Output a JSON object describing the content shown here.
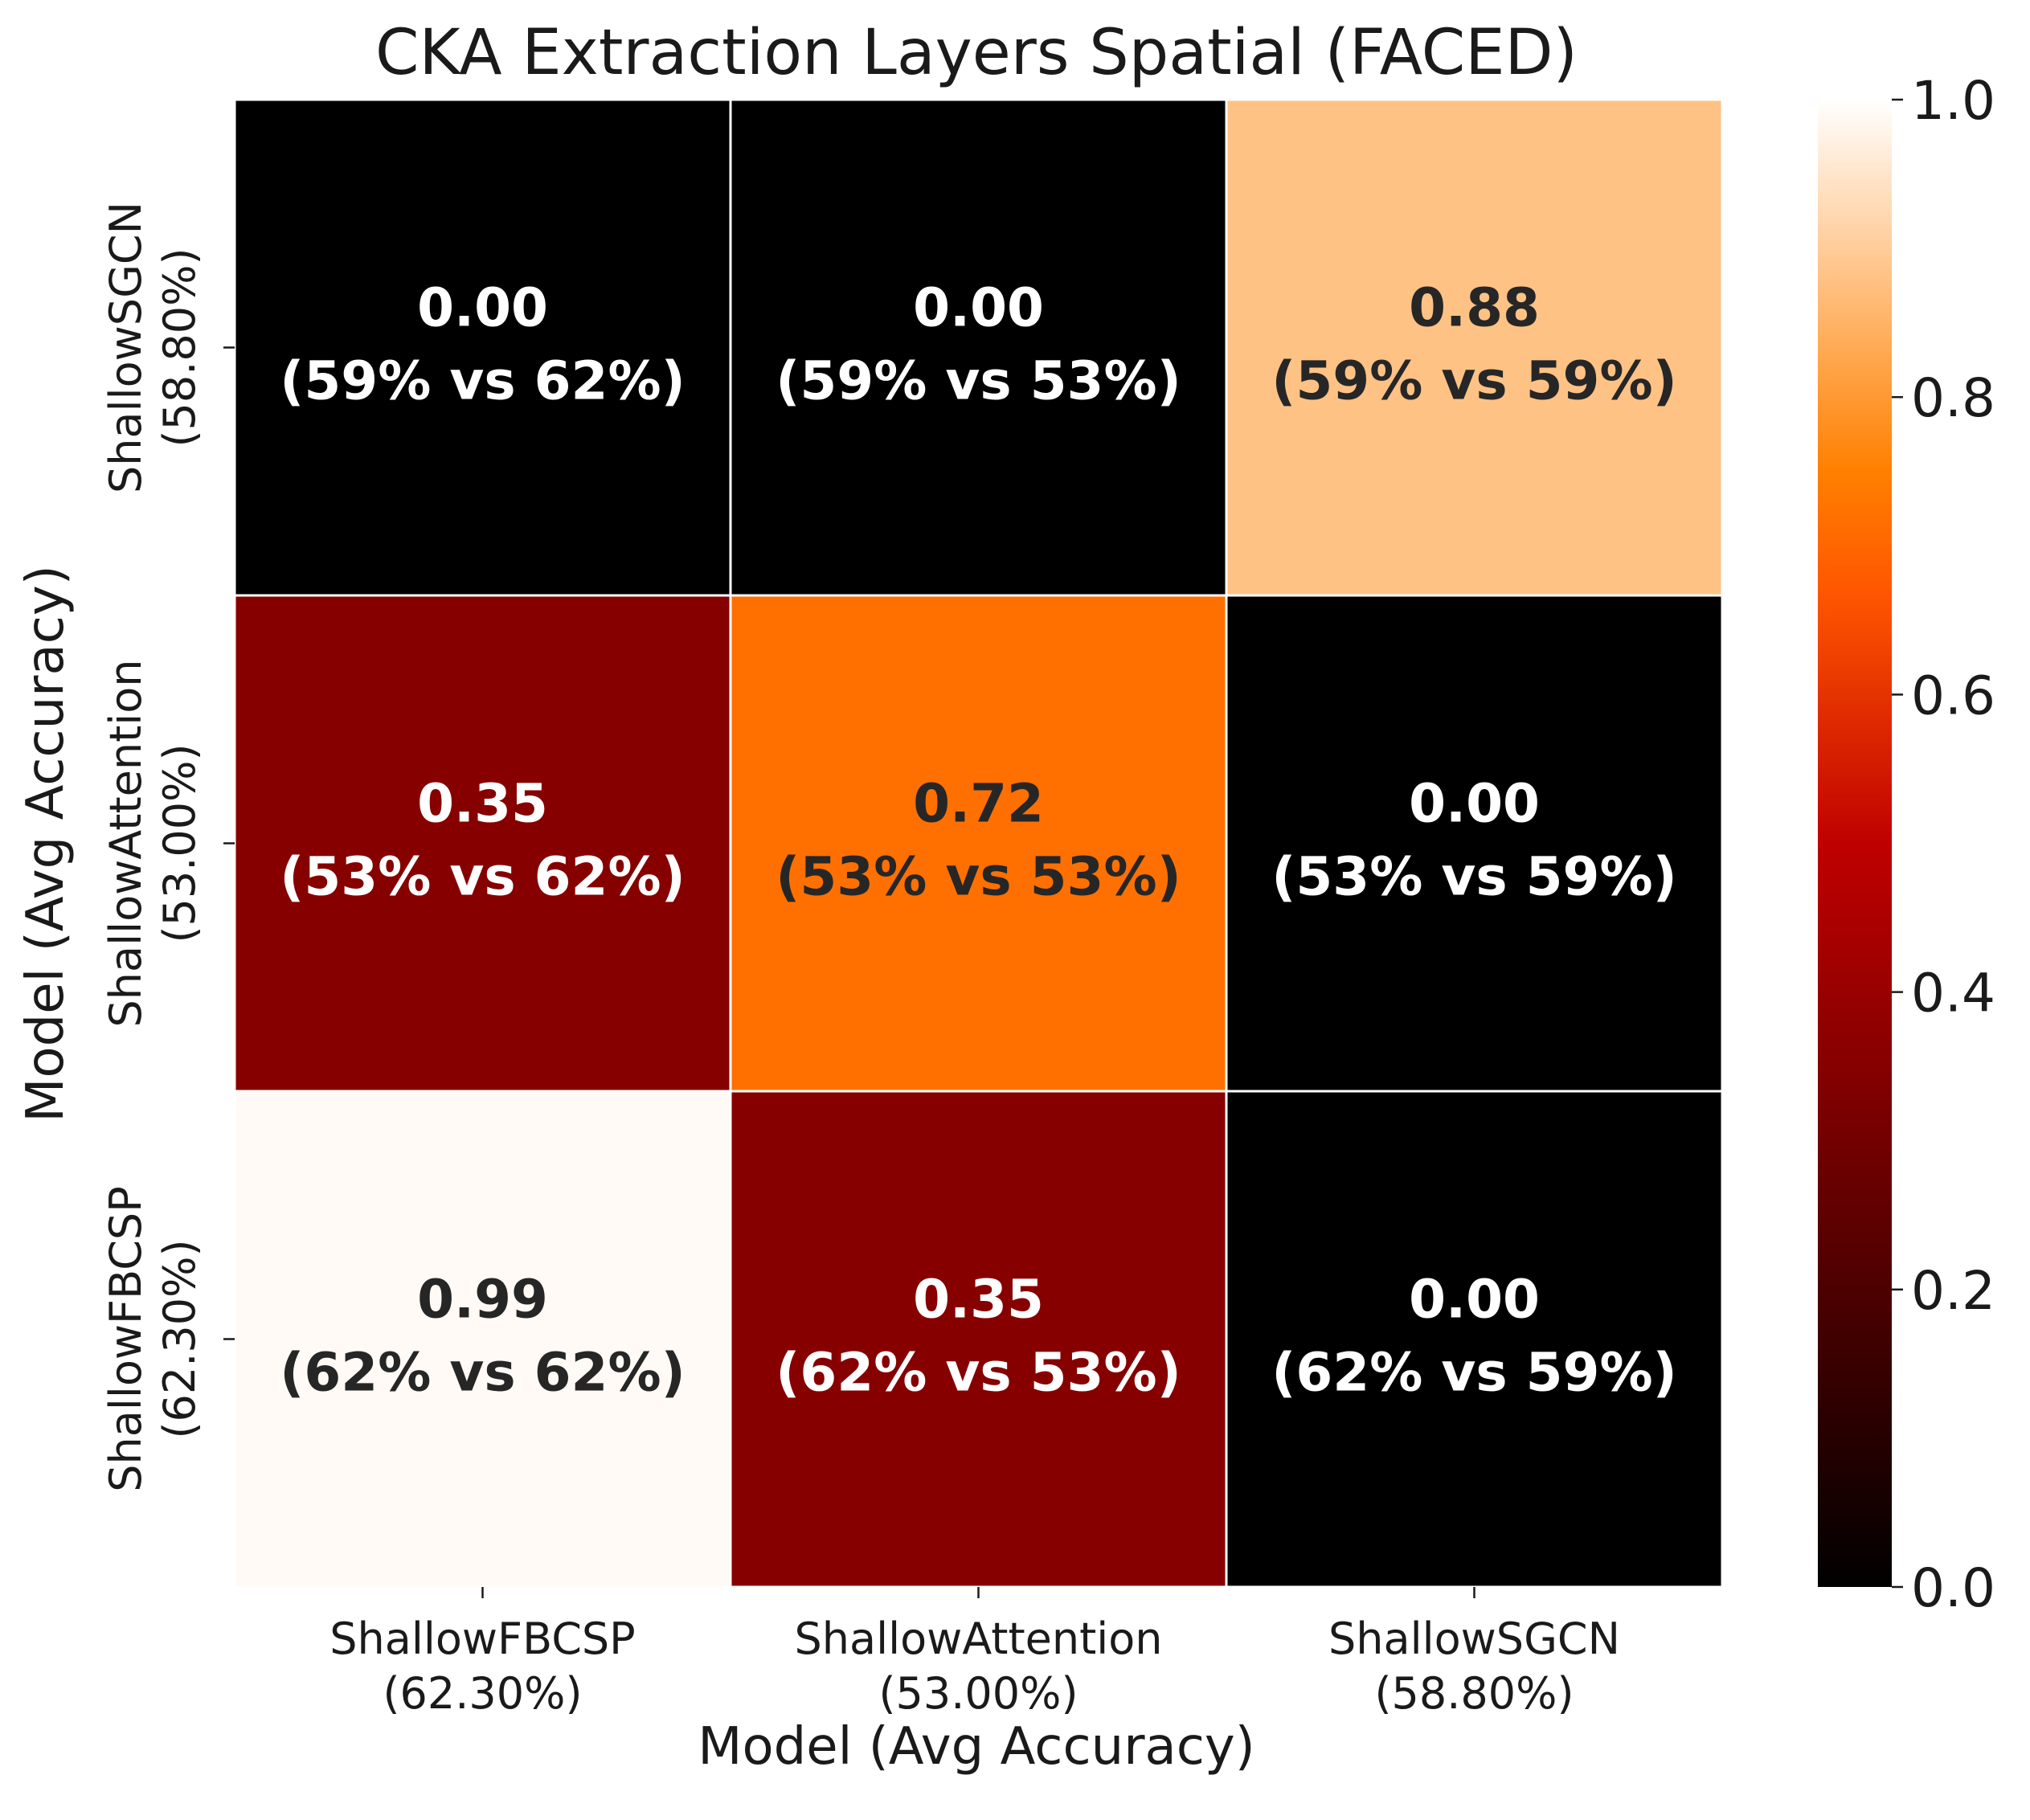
{
  "chart_data": {
    "type": "heatmap",
    "title": "CKA Extraction Layers Spatial (FACED)",
    "xlabel": "Model (Avg Accuracy)",
    "ylabel": "Model (Avg Accuracy)",
    "columns": [
      {
        "name": "ShallowFBCSP",
        "acc": "(62.30%)"
      },
      {
        "name": "ShallowAttention",
        "acc": "(53.00%)"
      },
      {
        "name": "ShallowSGCN",
        "acc": "(58.80%)"
      }
    ],
    "rows": [
      {
        "name": "ShallowSGCN",
        "acc": "(58.80%)"
      },
      {
        "name": "ShallowAttention",
        "acc": "(53.00%)"
      },
      {
        "name": "ShallowFBCSP",
        "acc": "(62.30%)"
      }
    ],
    "values": [
      [
        0.0,
        0.0,
        0.88
      ],
      [
        0.35,
        0.72,
        0.0
      ],
      [
        0.99,
        0.35,
        0.0
      ]
    ],
    "cell_labels": [
      [
        "0.00\n(59% vs 62%)",
        "0.00\n(59% vs 53%)",
        "0.88\n(59% vs 59%)"
      ],
      [
        "0.35\n(53% vs 62%)",
        "0.72\n(53% vs 53%)",
        "0.00\n(53% vs 59%)"
      ],
      [
        "0.99\n(62% vs 62%)",
        "0.35\n(62% vs 53%)",
        "0.00\n(62% vs 59%)"
      ]
    ],
    "colorbar": {
      "colormap": "gist_heat",
      "range": [
        0.0,
        1.0
      ],
      "ticks": [
        "0.0",
        "0.2",
        "0.4",
        "0.6",
        "0.8",
        "1.0"
      ]
    },
    "grid": false
  }
}
